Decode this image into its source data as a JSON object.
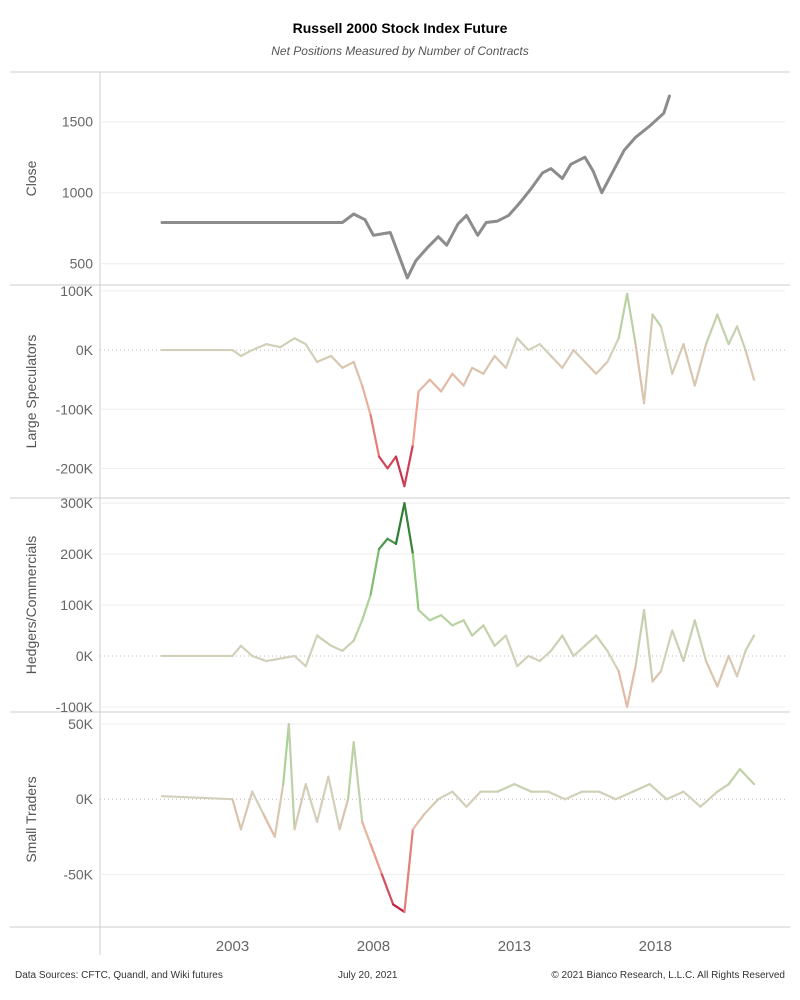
{
  "header": {
    "title": "Russell 2000 Stock Index Future",
    "subtitle": "Net Positions Measured by Number of Contracts"
  },
  "footer": {
    "sources": "Data Sources: CFTC, Quandl, and Wiki futures",
    "date": "July 20, 2021",
    "copyright": "© 2021 Bianco Research, L.L.C. All Rights Reserved"
  },
  "colors": {
    "close_line": "#8c8c8c",
    "positive_strong": "#2e7d32",
    "positive_light": "#9ed38a",
    "neutral": "#d3d0ba",
    "negative_light": "#f0a48e",
    "negative_strong": "#c0143c",
    "grid": "#eeeeee",
    "zero_line": "#bbbbbb",
    "border": "#cccccc"
  },
  "chart_data": {
    "type": "line",
    "x_axis": {
      "range": [
        1998.3,
        2022.6
      ],
      "tick_labels": [
        "2003",
        "2008",
        "2013",
        "2018"
      ],
      "ticks": [
        2003,
        2008,
        2013,
        2018
      ]
    },
    "grid": true,
    "panels": [
      {
        "ylabel": "Close",
        "ylim": [
          350,
          1850
        ],
        "ticks": [
          500,
          1000,
          1500
        ],
        "tick_labels": [
          "500",
          "1000",
          "1500"
        ],
        "color_mode": "solid",
        "points": [
          [
            2000.5,
            790
          ],
          [
            2006.9,
            790
          ],
          [
            2007.3,
            850
          ],
          [
            2007.7,
            810
          ],
          [
            2008.0,
            700
          ],
          [
            2008.3,
            710
          ],
          [
            2008.6,
            720
          ],
          [
            2008.9,
            560
          ],
          [
            2009.2,
            400
          ],
          [
            2009.5,
            520
          ],
          [
            2009.9,
            610
          ],
          [
            2010.3,
            690
          ],
          [
            2010.6,
            630
          ],
          [
            2011.0,
            780
          ],
          [
            2011.3,
            840
          ],
          [
            2011.7,
            700
          ],
          [
            2012.0,
            790
          ],
          [
            2012.4,
            800
          ],
          [
            2012.8,
            840
          ],
          [
            2013.2,
            930
          ],
          [
            2013.6,
            1030
          ],
          [
            2014.0,
            1140
          ],
          [
            2014.3,
            1170
          ],
          [
            2014.7,
            1100
          ],
          [
            2015.0,
            1200
          ],
          [
            2015.5,
            1250
          ],
          [
            2015.8,
            1150
          ],
          [
            2016.1,
            1000
          ],
          [
            2016.5,
            1150
          ],
          [
            2016.9,
            1300
          ],
          [
            2017.3,
            1390
          ],
          [
            2017.8,
            1470
          ],
          [
            2018.3,
            1560
          ],
          [
            2018.5,
            1680
          ]
        ]
      },
      {
        "ylabel": "Large Speculators",
        "ylim": [
          -250000,
          110000
        ],
        "ticks": [
          -200000,
          -100000,
          0,
          100000
        ],
        "tick_labels": [
          "-200K",
          "-100K",
          "0K",
          "100K"
        ],
        "color_mode": "diverging",
        "extreme": 230000,
        "points": [
          [
            2000.5,
            0
          ],
          [
            2003.0,
            0
          ],
          [
            2003.3,
            -10000
          ],
          [
            2003.7,
            0
          ],
          [
            2004.2,
            10000
          ],
          [
            2004.7,
            5000
          ],
          [
            2005.2,
            20000
          ],
          [
            2005.6,
            10000
          ],
          [
            2006.0,
            -20000
          ],
          [
            2006.5,
            -10000
          ],
          [
            2006.9,
            -30000
          ],
          [
            2007.3,
            -20000
          ],
          [
            2007.6,
            -60000
          ],
          [
            2007.9,
            -110000
          ],
          [
            2008.2,
            -180000
          ],
          [
            2008.5,
            -200000
          ],
          [
            2008.8,
            -180000
          ],
          [
            2009.1,
            -230000
          ],
          [
            2009.4,
            -160000
          ],
          [
            2009.6,
            -70000
          ],
          [
            2010.0,
            -50000
          ],
          [
            2010.4,
            -70000
          ],
          [
            2010.8,
            -40000
          ],
          [
            2011.2,
            -60000
          ],
          [
            2011.5,
            -30000
          ],
          [
            2011.9,
            -40000
          ],
          [
            2012.3,
            -10000
          ],
          [
            2012.7,
            -30000
          ],
          [
            2013.1,
            20000
          ],
          [
            2013.5,
            0
          ],
          [
            2013.9,
            10000
          ],
          [
            2014.3,
            -10000
          ],
          [
            2014.7,
            -30000
          ],
          [
            2015.1,
            0
          ],
          [
            2015.5,
            -20000
          ],
          [
            2015.9,
            -40000
          ],
          [
            2016.3,
            -20000
          ],
          [
            2016.7,
            20000
          ],
          [
            2017.0,
            95000
          ],
          [
            2017.3,
            10000
          ],
          [
            2017.6,
            -90000
          ],
          [
            2017.9,
            60000
          ],
          [
            2018.2,
            40000
          ],
          [
            2018.6,
            -40000
          ],
          [
            2019.0,
            10000
          ],
          [
            2019.4,
            -60000
          ],
          [
            2019.8,
            10000
          ],
          [
            2020.2,
            60000
          ],
          [
            2020.6,
            10000
          ],
          [
            2020.9,
            40000
          ],
          [
            2021.2,
            0
          ],
          [
            2021.5,
            -50000
          ]
        ]
      },
      {
        "ylabel": "Hedgers/Commercials",
        "ylim": [
          -110000,
          310000
        ],
        "ticks": [
          -100000,
          0,
          100000,
          200000,
          300000
        ],
        "tick_labels": [
          "-100K",
          "0K",
          "100K",
          "200K",
          "300K"
        ],
        "color_mode": "diverging",
        "extreme": 260000,
        "points": [
          [
            2000.5,
            0
          ],
          [
            2003.0,
            0
          ],
          [
            2003.3,
            20000
          ],
          [
            2003.7,
            0
          ],
          [
            2004.2,
            -10000
          ],
          [
            2004.7,
            -5000
          ],
          [
            2005.2,
            0
          ],
          [
            2005.6,
            -20000
          ],
          [
            2006.0,
            40000
          ],
          [
            2006.5,
            20000
          ],
          [
            2006.9,
            10000
          ],
          [
            2007.3,
            30000
          ],
          [
            2007.6,
            70000
          ],
          [
            2007.9,
            120000
          ],
          [
            2008.2,
            210000
          ],
          [
            2008.5,
            230000
          ],
          [
            2008.8,
            220000
          ],
          [
            2009.1,
            300000
          ],
          [
            2009.4,
            200000
          ],
          [
            2009.6,
            90000
          ],
          [
            2010.0,
            70000
          ],
          [
            2010.4,
            80000
          ],
          [
            2010.8,
            60000
          ],
          [
            2011.2,
            70000
          ],
          [
            2011.5,
            40000
          ],
          [
            2011.9,
            60000
          ],
          [
            2012.3,
            20000
          ],
          [
            2012.7,
            40000
          ],
          [
            2013.1,
            -20000
          ],
          [
            2013.5,
            0
          ],
          [
            2013.9,
            -10000
          ],
          [
            2014.3,
            10000
          ],
          [
            2014.7,
            40000
          ],
          [
            2015.1,
            0
          ],
          [
            2015.5,
            20000
          ],
          [
            2015.9,
            40000
          ],
          [
            2016.3,
            10000
          ],
          [
            2016.7,
            -30000
          ],
          [
            2017.0,
            -100000
          ],
          [
            2017.3,
            -20000
          ],
          [
            2017.6,
            90000
          ],
          [
            2017.9,
            -50000
          ],
          [
            2018.2,
            -30000
          ],
          [
            2018.6,
            50000
          ],
          [
            2019.0,
            -10000
          ],
          [
            2019.4,
            70000
          ],
          [
            2019.8,
            -10000
          ],
          [
            2020.2,
            -60000
          ],
          [
            2020.6,
            0
          ],
          [
            2020.9,
            -40000
          ],
          [
            2021.2,
            10000
          ],
          [
            2021.5,
            40000
          ]
        ]
      },
      {
        "ylabel": "Small Traders",
        "ylim": [
          -85000,
          58000
        ],
        "ticks": [
          -50000,
          0,
          50000
        ],
        "tick_labels": [
          "-50K",
          "0K",
          "50K"
        ],
        "color_mode": "diverging",
        "extreme": 75000,
        "points": [
          [
            2000.5,
            2000
          ],
          [
            2003.0,
            0
          ],
          [
            2003.3,
            -20000
          ],
          [
            2003.7,
            5000
          ],
          [
            2004.1,
            -10000
          ],
          [
            2004.5,
            -25000
          ],
          [
            2004.8,
            10000
          ],
          [
            2005.0,
            50000
          ],
          [
            2005.2,
            -20000
          ],
          [
            2005.6,
            10000
          ],
          [
            2006.0,
            -15000
          ],
          [
            2006.4,
            15000
          ],
          [
            2006.8,
            -20000
          ],
          [
            2007.1,
            0
          ],
          [
            2007.3,
            38000
          ],
          [
            2007.6,
            -15000
          ],
          [
            2007.9,
            -30000
          ],
          [
            2008.3,
            -50000
          ],
          [
            2008.7,
            -70000
          ],
          [
            2009.1,
            -75000
          ],
          [
            2009.4,
            -20000
          ],
          [
            2009.8,
            -10000
          ],
          [
            2010.3,
            0
          ],
          [
            2010.8,
            5000
          ],
          [
            2011.3,
            -5000
          ],
          [
            2011.8,
            5000
          ],
          [
            2012.4,
            5000
          ],
          [
            2013.0,
            10000
          ],
          [
            2013.6,
            5000
          ],
          [
            2014.2,
            5000
          ],
          [
            2014.8,
            0
          ],
          [
            2015.4,
            5000
          ],
          [
            2016.0,
            5000
          ],
          [
            2016.6,
            0
          ],
          [
            2017.2,
            5000
          ],
          [
            2017.8,
            10000
          ],
          [
            2018.4,
            0
          ],
          [
            2019.0,
            5000
          ],
          [
            2019.6,
            -5000
          ],
          [
            2020.2,
            5000
          ],
          [
            2020.6,
            10000
          ],
          [
            2021.0,
            20000
          ],
          [
            2021.5,
            10000
          ]
        ]
      }
    ]
  }
}
